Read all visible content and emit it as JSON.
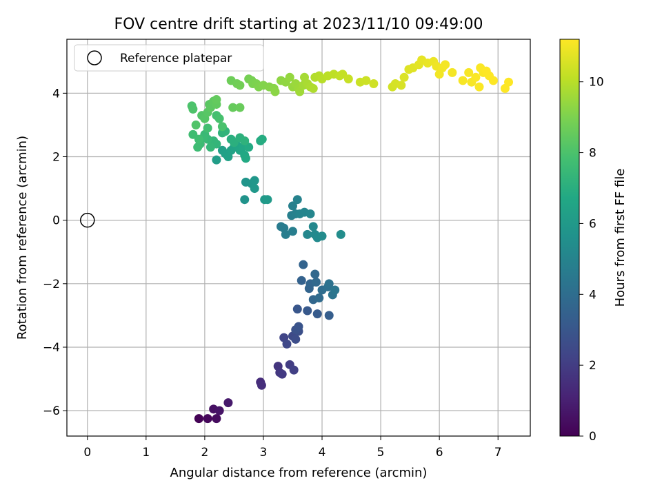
{
  "chart_data": {
    "type": "scatter",
    "title": "FOV centre drift starting at 2023/11/10 09:49:00",
    "xlabel": "Angular distance from reference (arcmin)",
    "ylabel": "Rotation from reference (arcmin)",
    "xlim": [
      -0.35,
      7.55
    ],
    "ylim": [
      -6.8,
      5.7
    ],
    "xticks": [
      0,
      1,
      2,
      3,
      4,
      5,
      6,
      7
    ],
    "yticks": [
      -6,
      -4,
      -2,
      0,
      2,
      4
    ],
    "grid": true,
    "legend": {
      "position": "top-left",
      "entries": [
        "Reference platepar"
      ]
    },
    "reference_point": {
      "x": 0,
      "y": 0
    },
    "colorbar": {
      "label": "Hours from first FF file",
      "colormap": "viridis",
      "range": [
        0,
        11.2
      ],
      "ticks": [
        0,
        2,
        4,
        6,
        8,
        10
      ]
    },
    "points": [
      [
        1.9,
        -6.25,
        0.05
      ],
      [
        2.05,
        -6.25,
        0.2
      ],
      [
        2.2,
        -6.25,
        0.35
      ],
      [
        2.15,
        -5.95,
        0.5
      ],
      [
        2.25,
        -6.0,
        0.6
      ],
      [
        2.4,
        -5.75,
        0.8
      ],
      [
        2.95,
        -5.1,
        1.4
      ],
      [
        2.97,
        -5.2,
        1.5
      ],
      [
        3.25,
        -4.6,
        1.7
      ],
      [
        3.28,
        -4.8,
        1.8
      ],
      [
        3.32,
        -4.85,
        1.9
      ],
      [
        3.45,
        -4.55,
        2.0
      ],
      [
        3.52,
        -4.72,
        2.1
      ],
      [
        3.35,
        -3.7,
        2.3
      ],
      [
        3.4,
        -3.9,
        2.4
      ],
      [
        3.5,
        -3.65,
        2.5
      ],
      [
        3.55,
        -3.75,
        2.6
      ],
      [
        3.6,
        -3.5,
        2.7
      ],
      [
        3.55,
        -3.45,
        2.8
      ],
      [
        3.6,
        -3.35,
        2.9
      ],
      [
        3.58,
        -2.8,
        3.0
      ],
      [
        3.75,
        -2.85,
        3.1
      ],
      [
        3.92,
        -2.95,
        3.2
      ],
      [
        4.12,
        -3.0,
        3.3
      ],
      [
        3.65,
        -1.9,
        3.5
      ],
      [
        3.68,
        -1.4,
        3.55
      ],
      [
        3.78,
        -2.15,
        3.6
      ],
      [
        3.8,
        -2.0,
        3.65
      ],
      [
        3.85,
        -2.5,
        3.7
      ],
      [
        3.88,
        -1.7,
        3.75
      ],
      [
        3.9,
        -1.95,
        3.8
      ],
      [
        3.95,
        -2.45,
        3.9
      ],
      [
        4.0,
        -2.2,
        4.0
      ],
      [
        4.1,
        -2.1,
        4.1
      ],
      [
        4.12,
        -2.0,
        4.2
      ],
      [
        4.18,
        -2.35,
        4.3
      ],
      [
        4.22,
        -2.2,
        4.4
      ],
      [
        3.3,
        -0.2,
        4.6
      ],
      [
        3.35,
        -0.25,
        4.65
      ],
      [
        3.38,
        -0.45,
        4.7
      ],
      [
        3.5,
        -0.35,
        4.75
      ],
      [
        3.48,
        0.15,
        4.8
      ],
      [
        3.5,
        0.45,
        4.85
      ],
      [
        3.55,
        0.2,
        4.9
      ],
      [
        3.58,
        0.65,
        4.95
      ],
      [
        3.62,
        0.2,
        5.0
      ],
      [
        3.7,
        0.25,
        5.05
      ],
      [
        3.8,
        0.2,
        5.1
      ],
      [
        3.75,
        -0.45,
        5.15
      ],
      [
        3.85,
        -0.2,
        5.2
      ],
      [
        3.88,
        -0.45,
        5.25
      ],
      [
        3.92,
        -0.55,
        5.3
      ],
      [
        4.0,
        -0.5,
        5.35
      ],
      [
        4.32,
        -0.45,
        5.4
      ],
      [
        2.68,
        0.65,
        5.7
      ],
      [
        2.7,
        1.2,
        5.8
      ],
      [
        2.8,
        1.15,
        5.85
      ],
      [
        2.85,
        1.25,
        5.9
      ],
      [
        2.85,
        1.0,
        5.95
      ],
      [
        3.02,
        0.65,
        6.0
      ],
      [
        3.07,
        0.65,
        6.05
      ],
      [
        2.2,
        1.9,
        6.2
      ],
      [
        2.3,
        2.2,
        6.3
      ],
      [
        2.35,
        2.1,
        6.35
      ],
      [
        2.4,
        2.0,
        6.4
      ],
      [
        2.45,
        2.2,
        6.45
      ],
      [
        2.5,
        2.3,
        6.5
      ],
      [
        2.55,
        2.35,
        6.55
      ],
      [
        2.6,
        2.2,
        6.6
      ],
      [
        2.65,
        2.3,
        6.65
      ],
      [
        2.68,
        2.05,
        6.7
      ],
      [
        2.7,
        1.95,
        6.75
      ],
      [
        2.75,
        2.3,
        6.8
      ],
      [
        2.95,
        2.5,
        6.85
      ],
      [
        2.98,
        2.55,
        6.9
      ],
      [
        2.45,
        2.55,
        7.0
      ],
      [
        2.5,
        2.45,
        7.05
      ],
      [
        2.6,
        2.6,
        7.1
      ],
      [
        2.68,
        2.5,
        7.15
      ],
      [
        2.3,
        2.75,
        7.2
      ],
      [
        2.35,
        2.8,
        7.25
      ],
      [
        2.2,
        2.4,
        7.3
      ],
      [
        2.15,
        2.5,
        7.35
      ],
      [
        2.1,
        2.3,
        7.4
      ],
      [
        2.05,
        2.55,
        7.45
      ],
      [
        2.0,
        2.7,
        7.5
      ],
      [
        1.98,
        2.6,
        7.55
      ],
      [
        1.92,
        2.4,
        7.6
      ],
      [
        1.88,
        2.3,
        7.65
      ],
      [
        1.8,
        2.7,
        7.7
      ],
      [
        1.9,
        2.55,
        7.75
      ],
      [
        2.05,
        2.9,
        7.8
      ],
      [
        2.2,
        3.3,
        7.85
      ],
      [
        2.25,
        3.2,
        7.9
      ],
      [
        2.3,
        2.95,
        7.95
      ],
      [
        1.78,
        3.6,
        8.0
      ],
      [
        1.8,
        3.5,
        8.05
      ],
      [
        1.85,
        3.0,
        8.1
      ],
      [
        1.95,
        3.3,
        8.15
      ],
      [
        2.0,
        3.2,
        8.2
      ],
      [
        2.05,
        3.4,
        8.25
      ],
      [
        2.08,
        3.65,
        8.3
      ],
      [
        2.1,
        3.55,
        8.35
      ],
      [
        2.15,
        3.75,
        8.4
      ],
      [
        2.2,
        3.65,
        8.45
      ],
      [
        2.2,
        3.8,
        8.5
      ],
      [
        2.48,
        3.55,
        8.55
      ],
      [
        2.6,
        3.55,
        8.6
      ],
      [
        2.45,
        4.4,
        8.7
      ],
      [
        2.55,
        4.3,
        8.75
      ],
      [
        2.6,
        4.25,
        8.8
      ],
      [
        2.75,
        4.45,
        8.85
      ],
      [
        2.8,
        4.4,
        8.9
      ],
      [
        2.82,
        4.3,
        8.95
      ],
      [
        2.88,
        4.3,
        9.0
      ],
      [
        2.92,
        4.2,
        9.05
      ],
      [
        3.0,
        4.25,
        9.1
      ],
      [
        3.1,
        4.2,
        9.15
      ],
      [
        3.18,
        4.15,
        9.2
      ],
      [
        3.2,
        4.05,
        9.25
      ],
      [
        3.3,
        4.4,
        9.3
      ],
      [
        3.38,
        4.35,
        9.35
      ],
      [
        3.45,
        4.5,
        9.4
      ],
      [
        3.5,
        4.2,
        9.45
      ],
      [
        3.55,
        4.3,
        9.5
      ],
      [
        3.6,
        4.15,
        9.55
      ],
      [
        3.62,
        4.05,
        9.6
      ],
      [
        3.68,
        4.25,
        9.65
      ],
      [
        3.7,
        4.5,
        9.7
      ],
      [
        3.75,
        4.3,
        9.75
      ],
      [
        3.8,
        4.2,
        9.8
      ],
      [
        3.85,
        4.15,
        9.85
      ],
      [
        3.88,
        4.5,
        9.9
      ],
      [
        3.95,
        4.55,
        9.95
      ],
      [
        4.0,
        4.45,
        10.0
      ],
      [
        4.1,
        4.55,
        10.05
      ],
      [
        4.2,
        4.6,
        10.1
      ],
      [
        4.3,
        4.55,
        10.15
      ],
      [
        4.35,
        4.6,
        10.2
      ],
      [
        4.45,
        4.45,
        10.25
      ],
      [
        4.65,
        4.35,
        10.3
      ],
      [
        4.75,
        4.4,
        10.35
      ],
      [
        4.88,
        4.3,
        10.4
      ],
      [
        5.2,
        4.2,
        10.45
      ],
      [
        5.25,
        4.3,
        10.5
      ],
      [
        5.35,
        4.25,
        10.55
      ],
      [
        5.4,
        4.5,
        10.6
      ],
      [
        5.48,
        4.75,
        10.65
      ],
      [
        5.55,
        4.8,
        10.7
      ],
      [
        5.65,
        4.9,
        10.75
      ],
      [
        5.7,
        5.05,
        10.8
      ],
      [
        5.8,
        4.95,
        10.85
      ],
      [
        5.9,
        5.0,
        10.9
      ],
      [
        5.95,
        4.85,
        10.95
      ],
      [
        6.0,
        4.6,
        11.0
      ],
      [
        6.05,
        4.8,
        11.0
      ],
      [
        6.1,
        4.9,
        11.05
      ],
      [
        6.22,
        4.65,
        11.05
      ],
      [
        6.4,
        4.4,
        11.1
      ],
      [
        6.5,
        4.65,
        11.1
      ],
      [
        6.55,
        4.35,
        11.1
      ],
      [
        6.62,
        4.5,
        11.15
      ],
      [
        6.68,
        4.2,
        11.15
      ],
      [
        6.7,
        4.8,
        11.15
      ],
      [
        6.75,
        4.65,
        11.15
      ],
      [
        6.8,
        4.7,
        11.2
      ],
      [
        6.85,
        4.55,
        11.2
      ],
      [
        6.92,
        4.4,
        11.2
      ],
      [
        7.12,
        4.15,
        11.2
      ],
      [
        7.18,
        4.35,
        11.2
      ]
    ]
  }
}
